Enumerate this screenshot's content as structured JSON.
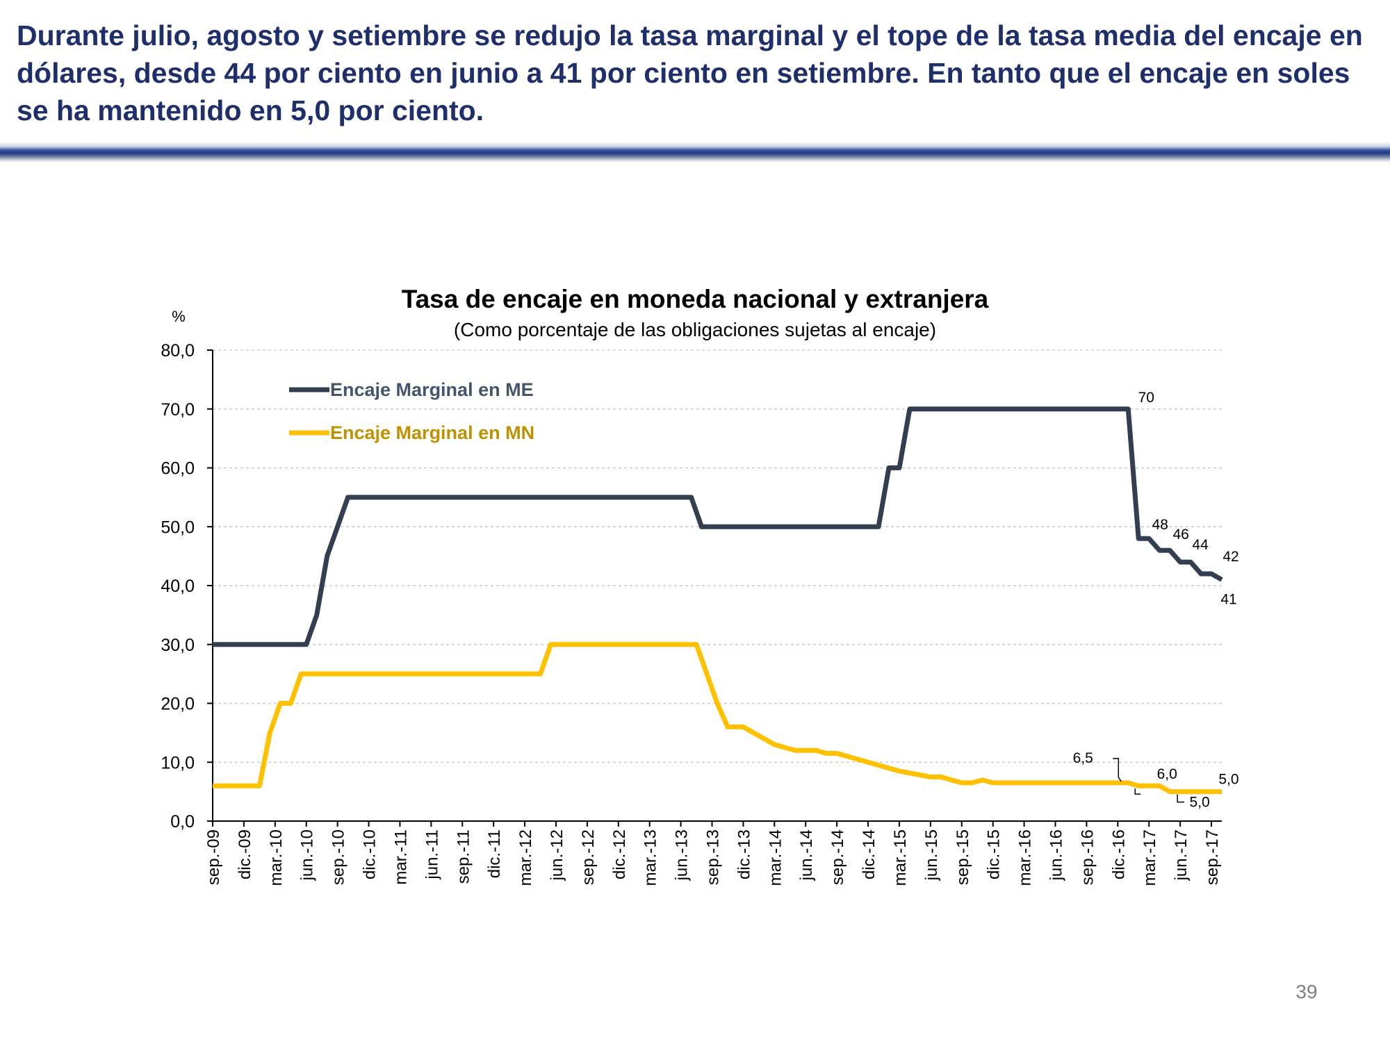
{
  "slide": {
    "headline": "Durante julio, agosto y setiembre se redujo la tasa marginal y el tope de la tasa media del encaje en dólares, desde 44 por ciento en junio a 41 por ciento en setiembre. En tanto que el encaje en soles se ha mantenido en 5,0 por ciento.",
    "page_number": "39"
  },
  "colors": {
    "headline": "#1f2f6b",
    "series_me": "#333f50",
    "series_mn": "#ffc000",
    "legend_me_text": "#44546a",
    "legend_mn_text": "#bf9000",
    "grid": "#c8c8c8"
  },
  "chart_data": {
    "type": "line",
    "title": "Tasa de encaje en moneda nacional y extranjera",
    "subtitle": "(Como porcentaje de las obligaciones sujetas al encaje)",
    "ylabel": "%",
    "xlabel": "",
    "ylim": [
      0,
      80
    ],
    "yticks": [
      0,
      10,
      20,
      30,
      40,
      50,
      60,
      70,
      80
    ],
    "ytick_labels": [
      "0,0",
      "10,0",
      "20,0",
      "30,0",
      "40,0",
      "50,0",
      "60,0",
      "70,0",
      "80,0"
    ],
    "grid": true,
    "legend_position": "top-left",
    "x_index_range": [
      0,
      97
    ],
    "x_tick_labels": [
      "sep.-09",
      "dic.-09",
      "mar.-10",
      "jun.-10",
      "sep.-10",
      "dic.-10",
      "mar.-11",
      "jun.-11",
      "sep.-11",
      "dic.-11",
      "mar.-12",
      "jun.-12",
      "sep.-12",
      "dic.-12",
      "mar.-13",
      "jun.-13",
      "sep.-13",
      "dic.-13",
      "mar.-14",
      "jun.-14",
      "sep.-14",
      "dic.-14",
      "mar.-15",
      "jun.-15",
      "sep.-15",
      "dic.-15",
      "mar.-16",
      "jun.-16",
      "sep.-16",
      "dic.-16",
      "mar.-17",
      "jun.-17",
      "sep.-17"
    ],
    "series": [
      {
        "name": "Encaje Marginal en ME",
        "points": [
          [
            0,
            30
          ],
          [
            9,
            30
          ],
          [
            10,
            35
          ],
          [
            11,
            45
          ],
          [
            13,
            55
          ],
          [
            46,
            55
          ],
          [
            47,
            50
          ],
          [
            64,
            50
          ],
          [
            65,
            60
          ],
          [
            66,
            60
          ],
          [
            67,
            70
          ],
          [
            88,
            70
          ],
          [
            89,
            48
          ],
          [
            90,
            48
          ],
          [
            91,
            46
          ],
          [
            92,
            46
          ],
          [
            93,
            44
          ],
          [
            94,
            44
          ],
          [
            95,
            42
          ],
          [
            96,
            42
          ],
          [
            97,
            41
          ]
        ]
      },
      {
        "name": "Encaje Marginal en MN",
        "points": [
          [
            0,
            6
          ],
          [
            4.5,
            6
          ],
          [
            5.5,
            15
          ],
          [
            6.5,
            20
          ],
          [
            7.5,
            20
          ],
          [
            8.5,
            25
          ],
          [
            31.5,
            25
          ],
          [
            32.5,
            30
          ],
          [
            46.5,
            30
          ],
          [
            48.5,
            20
          ],
          [
            49.5,
            16
          ],
          [
            51,
            16
          ],
          [
            54,
            13
          ],
          [
            56,
            12
          ],
          [
            58,
            12
          ],
          [
            59,
            11.5
          ],
          [
            60,
            11.5
          ],
          [
            63,
            10
          ],
          [
            66,
            8.5
          ],
          [
            69,
            7.5
          ],
          [
            70,
            7.5
          ],
          [
            71,
            7
          ],
          [
            72,
            6.5
          ],
          [
            73,
            6.5
          ],
          [
            74,
            7
          ],
          [
            75,
            6.5
          ],
          [
            77,
            6.5
          ],
          [
            80,
            6.5
          ],
          [
            81,
            6.5
          ],
          [
            88,
            6.5
          ],
          [
            89,
            6
          ],
          [
            91,
            6
          ],
          [
            92,
            5
          ],
          [
            97,
            5
          ]
        ]
      }
    ],
    "annotations": [
      {
        "text": "70",
        "series": 0,
        "x": 88,
        "y": 70
      },
      {
        "text": "48",
        "series": 0,
        "x": 90,
        "y": 48
      },
      {
        "text": "46",
        "series": 0,
        "x": 92,
        "y": 46
      },
      {
        "text": "44",
        "series": 0,
        "x": 94,
        "y": 44
      },
      {
        "text": "42",
        "series": 0,
        "x": 96,
        "y": 42
      },
      {
        "text": "41",
        "series": 0,
        "x": 97,
        "y": 41
      },
      {
        "text": "6,5",
        "series": 1,
        "x": 88,
        "y": 6.5
      },
      {
        "text": "6,0",
        "series": 1,
        "x": 90,
        "y": 6
      },
      {
        "text": "5,0",
        "series": 1,
        "x": 93,
        "y": 5
      },
      {
        "text": "5,0",
        "series": 1,
        "x": 97,
        "y": 5
      }
    ]
  }
}
